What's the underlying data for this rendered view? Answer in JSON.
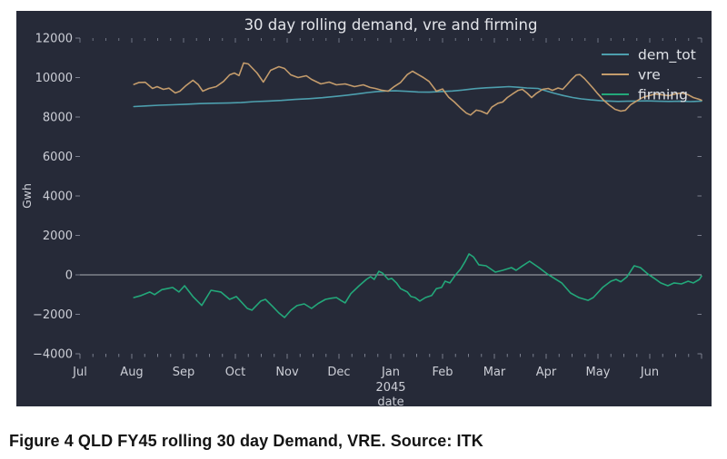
{
  "figure": {
    "caption": "Figure 4 QLD FY45 rolling 30 day Demand, VRE. Source: ITK"
  },
  "chart_data": {
    "type": "line",
    "title": "30 day rolling demand, vre and firming",
    "xlabel": "date",
    "x_year_label": "2045",
    "ylabel": "Gwh",
    "ylim": [
      -4000,
      12000
    ],
    "ytick_step": 2000,
    "x_categories": [
      "Jul",
      "Aug",
      "Sep",
      "Oct",
      "Nov",
      "Dec",
      "Jan",
      "Feb",
      "Mar",
      "Apr",
      "May",
      "Jun"
    ],
    "x_axis_units": "month index, 0 = Jul 2044 tick, 12 = right edge",
    "grid": false,
    "zero_line": true,
    "legend_position": "top-right",
    "colors": {
      "background": "#262a38",
      "tick_text": "#ccced6",
      "title_text": "#e3e5ea",
      "legend_text": "#dfe2e7",
      "tick_mark": "#8f94a3",
      "zero_line": "#c2c4cb"
    },
    "series": [
      {
        "name": "dem_tot",
        "color": "#4d9fae",
        "points": [
          [
            1.04,
            8530
          ],
          [
            1.26,
            8560
          ],
          [
            1.53,
            8600
          ],
          [
            1.79,
            8620
          ],
          [
            2.05,
            8650
          ],
          [
            2.32,
            8680
          ],
          [
            2.58,
            8700
          ],
          [
            2.84,
            8710
          ],
          [
            3.11,
            8730
          ],
          [
            3.37,
            8780
          ],
          [
            3.63,
            8810
          ],
          [
            3.89,
            8840
          ],
          [
            4.16,
            8890
          ],
          [
            4.42,
            8930
          ],
          [
            4.68,
            8980
          ],
          [
            4.95,
            9050
          ],
          [
            5.21,
            9120
          ],
          [
            5.39,
            9180
          ],
          [
            5.56,
            9240
          ],
          [
            5.74,
            9290
          ],
          [
            5.91,
            9320
          ],
          [
            6.09,
            9330
          ],
          [
            6.32,
            9300
          ],
          [
            6.53,
            9270
          ],
          [
            6.74,
            9260
          ],
          [
            6.96,
            9290
          ],
          [
            7.19,
            9320
          ],
          [
            7.4,
            9370
          ],
          [
            7.63,
            9440
          ],
          [
            7.84,
            9480
          ],
          [
            8.07,
            9510
          ],
          [
            8.28,
            9540
          ],
          [
            8.46,
            9510
          ],
          [
            8.63,
            9470
          ],
          [
            8.84,
            9450
          ],
          [
            8.98,
            9340
          ],
          [
            9.16,
            9200
          ],
          [
            9.33,
            9090
          ],
          [
            9.51,
            8990
          ],
          [
            9.68,
            8920
          ],
          [
            9.86,
            8870
          ],
          [
            10.04,
            8830
          ],
          [
            10.21,
            8810
          ],
          [
            10.39,
            8790
          ],
          [
            10.56,
            8800
          ],
          [
            10.74,
            8810
          ],
          [
            10.95,
            8820
          ],
          [
            11.16,
            8800
          ],
          [
            11.37,
            8790
          ],
          [
            11.58,
            8800
          ],
          [
            11.79,
            8780
          ],
          [
            12.0,
            8810
          ]
        ]
      },
      {
        "name": "vre",
        "color": "#c49c6c",
        "points": [
          [
            1.04,
            9650
          ],
          [
            1.14,
            9750
          ],
          [
            1.26,
            9760
          ],
          [
            1.4,
            9450
          ],
          [
            1.49,
            9540
          ],
          [
            1.61,
            9400
          ],
          [
            1.72,
            9460
          ],
          [
            1.84,
            9220
          ],
          [
            1.93,
            9310
          ],
          [
            2.05,
            9600
          ],
          [
            2.18,
            9860
          ],
          [
            2.28,
            9650
          ],
          [
            2.37,
            9310
          ],
          [
            2.49,
            9450
          ],
          [
            2.63,
            9540
          ],
          [
            2.77,
            9800
          ],
          [
            2.89,
            10140
          ],
          [
            2.98,
            10230
          ],
          [
            3.07,
            10100
          ],
          [
            3.16,
            10740
          ],
          [
            3.25,
            10690
          ],
          [
            3.42,
            10230
          ],
          [
            3.54,
            9770
          ],
          [
            3.68,
            10370
          ],
          [
            3.84,
            10550
          ],
          [
            3.95,
            10460
          ],
          [
            4.07,
            10140
          ],
          [
            4.21,
            10000
          ],
          [
            4.37,
            10090
          ],
          [
            4.47,
            9910
          ],
          [
            4.65,
            9680
          ],
          [
            4.81,
            9770
          ],
          [
            4.95,
            9630
          ],
          [
            5.12,
            9680
          ],
          [
            5.3,
            9540
          ],
          [
            5.47,
            9630
          ],
          [
            5.6,
            9500
          ],
          [
            5.7,
            9450
          ],
          [
            5.82,
            9360
          ],
          [
            5.95,
            9310
          ],
          [
            6.07,
            9550
          ],
          [
            6.19,
            9750
          ],
          [
            6.32,
            10150
          ],
          [
            6.42,
            10320
          ],
          [
            6.53,
            10150
          ],
          [
            6.63,
            10000
          ],
          [
            6.74,
            9800
          ],
          [
            6.88,
            9310
          ],
          [
            7.0,
            9420
          ],
          [
            7.12,
            9000
          ],
          [
            7.23,
            8760
          ],
          [
            7.35,
            8450
          ],
          [
            7.46,
            8200
          ],
          [
            7.54,
            8100
          ],
          [
            7.65,
            8350
          ],
          [
            7.74,
            8300
          ],
          [
            7.86,
            8160
          ],
          [
            7.95,
            8500
          ],
          [
            8.07,
            8700
          ],
          [
            8.16,
            8760
          ],
          [
            8.25,
            8990
          ],
          [
            8.35,
            9170
          ],
          [
            8.46,
            9350
          ],
          [
            8.54,
            9400
          ],
          [
            8.63,
            9220
          ],
          [
            8.72,
            8990
          ],
          [
            8.81,
            9200
          ],
          [
            8.93,
            9400
          ],
          [
            9.04,
            9450
          ],
          [
            9.12,
            9350
          ],
          [
            9.23,
            9470
          ],
          [
            9.32,
            9400
          ],
          [
            9.4,
            9630
          ],
          [
            9.49,
            9900
          ],
          [
            9.58,
            10130
          ],
          [
            9.65,
            10150
          ],
          [
            9.74,
            9950
          ],
          [
            9.82,
            9720
          ],
          [
            9.91,
            9450
          ],
          [
            10.0,
            9170
          ],
          [
            10.11,
            8850
          ],
          [
            10.21,
            8620
          ],
          [
            10.33,
            8390
          ],
          [
            10.44,
            8300
          ],
          [
            10.53,
            8340
          ],
          [
            10.63,
            8620
          ],
          [
            10.74,
            8800
          ],
          [
            10.86,
            8990
          ],
          [
            10.98,
            9080
          ],
          [
            11.11,
            9170
          ],
          [
            11.23,
            9130
          ],
          [
            11.37,
            9080
          ],
          [
            11.49,
            9170
          ],
          [
            11.61,
            9220
          ],
          [
            11.74,
            9130
          ],
          [
            11.84,
            8990
          ],
          [
            11.95,
            8900
          ],
          [
            12.0,
            8850
          ]
        ]
      },
      {
        "name": "firming",
        "color": "#23a87a",
        "points": [
          [
            1.04,
            -1150
          ],
          [
            1.18,
            -1050
          ],
          [
            1.35,
            -870
          ],
          [
            1.44,
            -1000
          ],
          [
            1.58,
            -750
          ],
          [
            1.68,
            -700
          ],
          [
            1.79,
            -640
          ],
          [
            1.91,
            -870
          ],
          [
            2.02,
            -550
          ],
          [
            2.18,
            -1100
          ],
          [
            2.35,
            -1550
          ],
          [
            2.53,
            -780
          ],
          [
            2.72,
            -870
          ],
          [
            2.89,
            -1240
          ],
          [
            3.02,
            -1100
          ],
          [
            3.23,
            -1700
          ],
          [
            3.32,
            -1790
          ],
          [
            3.49,
            -1330
          ],
          [
            3.58,
            -1240
          ],
          [
            3.72,
            -1600
          ],
          [
            3.84,
            -1930
          ],
          [
            3.95,
            -2160
          ],
          [
            4.07,
            -1800
          ],
          [
            4.19,
            -1560
          ],
          [
            4.33,
            -1470
          ],
          [
            4.47,
            -1700
          ],
          [
            4.6,
            -1450
          ],
          [
            4.74,
            -1240
          ],
          [
            4.86,
            -1180
          ],
          [
            4.95,
            -1150
          ],
          [
            5.04,
            -1300
          ],
          [
            5.12,
            -1420
          ],
          [
            5.23,
            -950
          ],
          [
            5.39,
            -550
          ],
          [
            5.53,
            -230
          ],
          [
            5.61,
            -90
          ],
          [
            5.68,
            -230
          ],
          [
            5.77,
            180
          ],
          [
            5.84,
            90
          ],
          [
            5.95,
            -230
          ],
          [
            6.02,
            -180
          ],
          [
            6.11,
            -410
          ],
          [
            6.19,
            -700
          ],
          [
            6.32,
            -870
          ],
          [
            6.39,
            -1100
          ],
          [
            6.47,
            -1150
          ],
          [
            6.56,
            -1330
          ],
          [
            6.67,
            -1150
          ],
          [
            6.79,
            -1050
          ],
          [
            6.88,
            -700
          ],
          [
            6.98,
            -640
          ],
          [
            7.05,
            -320
          ],
          [
            7.14,
            -410
          ],
          [
            7.25,
            0
          ],
          [
            7.35,
            300
          ],
          [
            7.44,
            700
          ],
          [
            7.51,
            1060
          ],
          [
            7.6,
            900
          ],
          [
            7.7,
            510
          ],
          [
            7.84,
            460
          ],
          [
            8.02,
            140
          ],
          [
            8.16,
            230
          ],
          [
            8.33,
            370
          ],
          [
            8.42,
            230
          ],
          [
            8.54,
            450
          ],
          [
            8.68,
            690
          ],
          [
            8.86,
            370
          ],
          [
            9.02,
            50
          ],
          [
            9.16,
            -180
          ],
          [
            9.3,
            -410
          ],
          [
            9.47,
            -920
          ],
          [
            9.63,
            -1150
          ],
          [
            9.81,
            -1290
          ],
          [
            9.91,
            -1150
          ],
          [
            10.09,
            -640
          ],
          [
            10.25,
            -320
          ],
          [
            10.35,
            -230
          ],
          [
            10.44,
            -350
          ],
          [
            10.56,
            -100
          ],
          [
            10.7,
            460
          ],
          [
            10.82,
            370
          ],
          [
            10.96,
            50
          ],
          [
            11.09,
            -180
          ],
          [
            11.21,
            -410
          ],
          [
            11.35,
            -550
          ],
          [
            11.47,
            -410
          ],
          [
            11.61,
            -460
          ],
          [
            11.74,
            -320
          ],
          [
            11.84,
            -410
          ],
          [
            11.96,
            -230
          ],
          [
            12.0,
            -60
          ]
        ]
      }
    ]
  }
}
